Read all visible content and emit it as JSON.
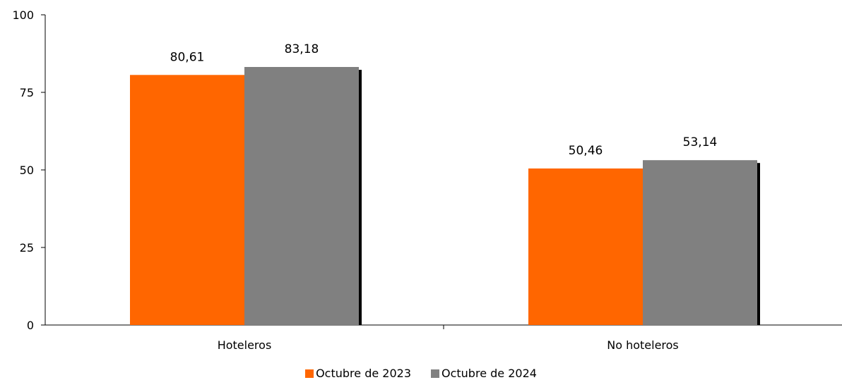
{
  "chart_data": {
    "type": "bar",
    "categories": [
      "Hoteleros",
      "No hoteleros"
    ],
    "series": [
      {
        "name": "Octubre de 2023",
        "values": [
          80.61,
          50.46
        ],
        "color": "#ff6600",
        "labels": [
          "80,61",
          "50,46"
        ]
      },
      {
        "name": "Octubre de 2024",
        "values": [
          83.18,
          53.14
        ],
        "color": "#808080",
        "labels": [
          "83,18",
          "53,14"
        ]
      }
    ],
    "ylim": [
      0,
      100
    ],
    "yticks": [
      0,
      25,
      50,
      75,
      100
    ],
    "grid": false,
    "legend_position": "bottom",
    "shadow_color": "#000000"
  }
}
